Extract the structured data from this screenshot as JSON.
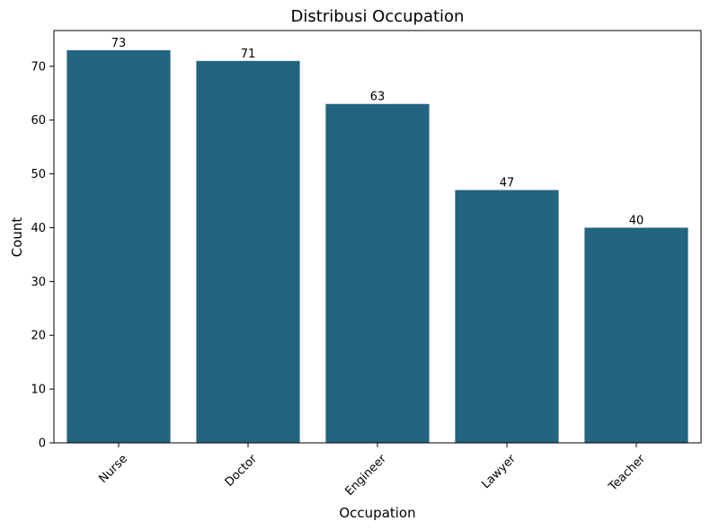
{
  "chart_data": {
    "type": "bar",
    "title": "Distribusi Occupation",
    "xlabel": "Occupation",
    "ylabel": "Count",
    "categories": [
      "Nurse",
      "Doctor",
      "Engineer",
      "Lawyer",
      "Teacher"
    ],
    "values": [
      73,
      71,
      63,
      47,
      40
    ],
    "value_labels": [
      "73",
      "71",
      "63",
      "47",
      "40"
    ],
    "yticks": [
      0,
      10,
      20,
      30,
      40,
      50,
      60,
      70
    ],
    "ylim": [
      0,
      76.65
    ],
    "grid": false,
    "legend": "none",
    "bar_color": "#236480",
    "xtick_rotation": 45
  }
}
